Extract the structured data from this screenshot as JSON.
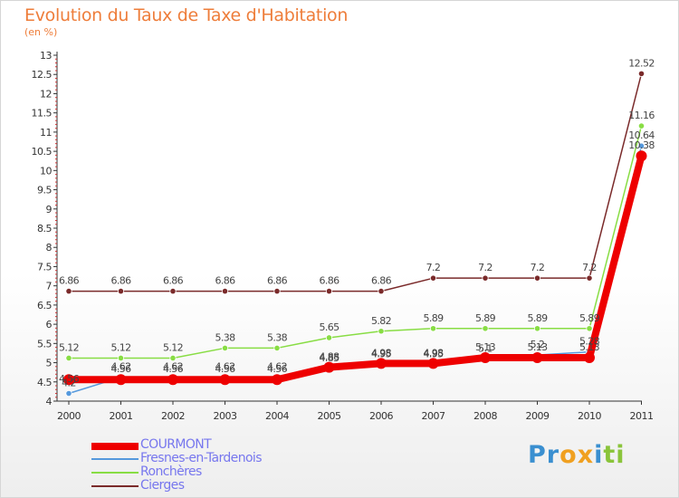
{
  "header": {
    "title": "Evolution du Taux de Taxe d'Habitation",
    "subtitle": "(en %)"
  },
  "chart_data": {
    "type": "line",
    "title": "Evolution du Taux de Taxe d'Habitation",
    "subtitle": "(en %)",
    "xlabel": "",
    "ylabel": "",
    "x": [
      "2000",
      "2001",
      "2002",
      "2003",
      "2004",
      "2005",
      "2006",
      "2007",
      "2008",
      "2009",
      "2010",
      "2011"
    ],
    "ylim": [
      4,
      13
    ],
    "yticks": [
      "4",
      "4.5",
      "5",
      "5.5",
      "6",
      "6.5",
      "7",
      "7.5",
      "8",
      "8.5",
      "9",
      "9.5",
      "10",
      "10.5",
      "11",
      "11.5",
      "12",
      "12.5",
      "13"
    ],
    "grid": false,
    "legend_position": "bottom-left",
    "series": [
      {
        "name": "COURMONT",
        "color": "#ee0000",
        "values": [
          4.56,
          4.56,
          4.56,
          4.56,
          4.56,
          4.88,
          4.98,
          4.98,
          5.13,
          5.13,
          5.13,
          10.38
        ],
        "labels": [
          "4.56",
          "4.56",
          "4.56",
          "4.56",
          "4.56",
          "4.88",
          "4.98",
          "4.98",
          "5.13",
          "5.13",
          "5.13",
          "10.38"
        ]
      },
      {
        "name": "Fresnes-en-Tardenois",
        "color": "#5599dd",
        "values": [
          4.2,
          4.62,
          4.62,
          4.62,
          4.62,
          4.85,
          4.95,
          4.95,
          5.1,
          5.2,
          5.28,
          10.64
        ],
        "labels": [
          "4.2",
          "4.62",
          "4.62",
          "4.62",
          "4.62",
          "4.85",
          "4.95",
          "4.95",
          "5.1",
          "5.2",
          "5.28",
          "10.64"
        ]
      },
      {
        "name": "Ronchères",
        "color": "#88dd44",
        "values": [
          5.12,
          5.12,
          5.12,
          5.38,
          5.38,
          5.65,
          5.82,
          5.89,
          5.89,
          5.89,
          5.89,
          11.16
        ],
        "labels": [
          "5.12",
          "5.12",
          "5.12",
          "5.38",
          "5.38",
          "5.65",
          "5.82",
          "5.89",
          "5.89",
          "5.89",
          "5.89",
          "11.16"
        ]
      },
      {
        "name": "Cierges",
        "color": "#7a2a2a",
        "values": [
          6.86,
          6.86,
          6.86,
          6.86,
          6.86,
          6.86,
          6.86,
          7.2,
          7.2,
          7.2,
          7.2,
          12.52
        ],
        "labels": [
          "6.86",
          "6.86",
          "6.86",
          "6.86",
          "6.86",
          "6.86",
          "6.86",
          "7.2",
          "7.2",
          "7.2",
          "7.2",
          "12.52"
        ]
      }
    ]
  },
  "legend": [
    {
      "label": "COURMONT",
      "color": "#ee0000",
      "label_color": "#7777ee"
    },
    {
      "label": "Fresnes-en-Tardenois",
      "color": "#5599dd",
      "label_color": "#7777ee"
    },
    {
      "label": "Ronchères",
      "color": "#88dd44",
      "label_color": "#7777ee"
    },
    {
      "label": "Cierges",
      "color": "#7a2a2a",
      "label_color": "#7777ee"
    }
  ],
  "logo": {
    "letters": [
      "P",
      "r",
      "o",
      "x",
      "i",
      "t",
      "i"
    ],
    "colors": [
      "#3a8fd0",
      "#3a8fd0",
      "#f0a020",
      "#f0a020",
      "#3a8fd0",
      "#8ac43a",
      "#8ac43a"
    ]
  },
  "colors": {
    "title": "#ee7d3a",
    "axis": "#333333"
  }
}
